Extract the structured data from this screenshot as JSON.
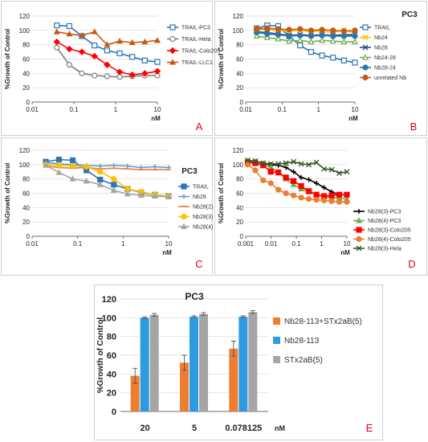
{
  "chart_data": [
    {
      "id": "A",
      "type": "line",
      "letter": "A",
      "title": "",
      "xlabel": "nM",
      "ylabel": "%Growth of Control",
      "xscale": "log",
      "xlim": [
        0.01,
        10
      ],
      "ylim": [
        0,
        120
      ],
      "yticks": [
        0,
        20,
        40,
        60,
        80,
        100,
        120
      ],
      "xticks": [
        0.01,
        0.1,
        1,
        10
      ],
      "xtick_labels": [
        "0.01",
        "0.1",
        "1",
        "10"
      ],
      "legend_position": "right",
      "series": [
        {
          "name": "TRAIL-PC3",
          "color": "#2e75b6",
          "marker": "square-open",
          "x": [
            0.039,
            0.078,
            0.156,
            0.3125,
            0.625,
            1.25,
            2.5,
            5,
            10
          ],
          "y": [
            107,
            106,
            92,
            79,
            72,
            68,
            63,
            58,
            56
          ]
        },
        {
          "name": "TRAIL-Hela",
          "color": "#7f7f7f",
          "marker": "circle-open",
          "x": [
            0.039,
            0.078,
            0.156,
            0.3125,
            0.625,
            1.25,
            2.5,
            5,
            10
          ],
          "y": [
            76,
            52,
            40,
            37,
            36,
            35,
            36,
            37,
            37
          ]
        },
        {
          "name": "TRAIL-Colo205",
          "color": "#ff0000",
          "marker": "diamond",
          "x": [
            0.039,
            0.078,
            0.156,
            0.3125,
            0.625,
            1.25,
            2.5,
            5,
            10
          ],
          "y": [
            84,
            74,
            70,
            64,
            52,
            42,
            38,
            40,
            43
          ]
        },
        {
          "name": "TRAIL-LLC1",
          "color": "#c55a11",
          "marker": "triangle",
          "x": [
            0.039,
            0.078,
            0.156,
            0.3125,
            0.625,
            1.25,
            2.5,
            5,
            10
          ],
          "y": [
            98,
            95,
            93,
            98,
            80,
            85,
            83,
            84,
            86
          ]
        }
      ]
    },
    {
      "id": "B",
      "type": "line",
      "letter": "B",
      "title": "PC3",
      "xlabel": "nM",
      "ylabel": "%Growth of Control",
      "xscale": "log",
      "xlim": [
        0.01,
        10
      ],
      "ylim": [
        0,
        120
      ],
      "yticks": [
        0,
        20,
        40,
        60,
        80,
        100,
        120
      ],
      "xticks": [
        0.01,
        0.1,
        1,
        10
      ],
      "xtick_labels": [
        "0.01",
        "0.1",
        "1",
        "10"
      ],
      "legend_position": "right",
      "series": [
        {
          "name": "TRAIL",
          "color": "#2e75b6",
          "marker": "square-open",
          "x": [
            0.02,
            0.039,
            0.078,
            0.156,
            0.3125,
            0.625,
            1.25,
            2.5,
            5,
            10
          ],
          "y": [
            103,
            107,
            106,
            92,
            79,
            70,
            65,
            62,
            58,
            55
          ]
        },
        {
          "name": "Nb24",
          "color": "#ffc000",
          "marker": "x",
          "x": [
            0.02,
            0.039,
            0.078,
            0.156,
            0.3125,
            0.625,
            1.25,
            2.5,
            5,
            10
          ],
          "y": [
            102,
            101,
            100,
            99,
            100,
            98,
            99,
            97,
            101,
            96
          ]
        },
        {
          "name": "Nb28",
          "color": "#1f4e79",
          "marker": "x",
          "x": [
            0.02,
            0.039,
            0.078,
            0.156,
            0.3125,
            0.625,
            1.25,
            2.5,
            5,
            10
          ],
          "y": [
            98,
            97,
            95,
            93,
            94,
            93,
            94,
            93,
            94,
            94
          ]
        },
        {
          "name": "Nb24-28",
          "color": "#70ad47",
          "marker": "triangle-open",
          "x": [
            0.02,
            0.039,
            0.078,
            0.156,
            0.3125,
            0.625,
            1.25,
            2.5,
            5,
            10
          ],
          "y": [
            92,
            90,
            88,
            85,
            86,
            84,
            86,
            85,
            84,
            84
          ]
        },
        {
          "name": "Nb28-24",
          "color": "#2e75b6",
          "marker": "circle",
          "x": [
            0.02,
            0.039,
            0.078,
            0.156,
            0.3125,
            0.625,
            1.25,
            2.5,
            5,
            10
          ],
          "y": [
            97,
            95,
            94,
            92,
            93,
            92,
            93,
            92,
            92,
            92
          ]
        },
        {
          "name": "unrelated Nb",
          "color": "#c55a11",
          "marker": "circle",
          "x": [
            0.02,
            0.039,
            0.078,
            0.156,
            0.3125,
            0.625,
            1.25,
            2.5,
            5,
            10
          ],
          "y": [
            102,
            103,
            102,
            101,
            102,
            100,
            101,
            100,
            99,
            100
          ]
        }
      ]
    },
    {
      "id": "C",
      "type": "line",
      "letter": "C",
      "title": "PC3",
      "xlabel": "nM",
      "ylabel": "%Growth of Control",
      "xscale": "log",
      "xlim": [
        0.01,
        10
      ],
      "ylim": [
        0,
        120
      ],
      "yticks": [
        0,
        20,
        40,
        60,
        80,
        100,
        120
      ],
      "xticks": [
        0.01,
        0.1,
        1,
        10
      ],
      "xtick_labels": [
        "0.01",
        "0.1",
        "1",
        "10"
      ],
      "legend_position": "right",
      "series": [
        {
          "name": "TRAIL",
          "color": "#2e75b6",
          "marker": "square",
          "x": [
            0.02,
            0.039,
            0.078,
            0.156,
            0.3125,
            0.625,
            1.25,
            2.5,
            5,
            10
          ],
          "y": [
            104,
            107,
            106,
            92,
            79,
            72,
            66,
            61,
            58,
            56
          ]
        },
        {
          "name": "Nb28",
          "color": "#5b9bd5",
          "marker": "plus",
          "x": [
            0.02,
            0.039,
            0.078,
            0.156,
            0.3125,
            0.625,
            1.25,
            2.5,
            5,
            10
          ],
          "y": [
            103,
            101,
            100,
            99,
            98,
            99,
            98,
            96,
            97,
            96
          ]
        },
        {
          "name": "Nb28(2)",
          "color": "#ed7d31",
          "marker": "dash",
          "x": [
            0.02,
            0.039,
            0.078,
            0.156,
            0.3125,
            0.625,
            1.25,
            2.5,
            5,
            10
          ],
          "y": [
            98,
            96,
            95,
            96,
            94,
            95,
            94,
            93,
            93,
            93
          ]
        },
        {
          "name": "Nb28(3)",
          "color": "#ffc000",
          "marker": "circle",
          "x": [
            0.02,
            0.039,
            0.078,
            0.156,
            0.3125,
            0.625,
            1.25,
            2.5,
            5,
            10
          ],
          "y": [
            100,
            99,
            98,
            97,
            90,
            80,
            66,
            62,
            58,
            56
          ]
        },
        {
          "name": "Nb28(4)",
          "color": "#a5a5a5",
          "marker": "triangle",
          "x": [
            0.02,
            0.039,
            0.078,
            0.156,
            0.3125,
            0.625,
            1.25,
            2.5,
            5,
            10
          ],
          "y": [
            99,
            89,
            80,
            77,
            72,
            64,
            59,
            57,
            56,
            55
          ]
        }
      ]
    },
    {
      "id": "D",
      "type": "line",
      "letter": "D",
      "title": "",
      "xlabel": "nM",
      "ylabel": "%Growth of Control",
      "xscale": "log",
      "xlim": [
        0.001,
        10
      ],
      "ylim": [
        0,
        120
      ],
      "yticks": [
        0,
        20,
        40,
        60,
        80,
        100,
        120
      ],
      "xticks": [
        0.001,
        0.01,
        0.1,
        1,
        10
      ],
      "xtick_labels": [
        "0.001",
        "0.01",
        "0.1",
        "1",
        "10"
      ],
      "legend_position": "right",
      "series": [
        {
          "name": "Nb28(3)-PC3",
          "color": "#000000",
          "marker": "plus",
          "x": [
            0.0012,
            0.0024,
            0.0049,
            0.0098,
            0.0195,
            0.039,
            0.078,
            0.156,
            0.3125,
            0.625,
            1.25,
            2.5,
            5,
            10
          ],
          "y": [
            104,
            103,
            102,
            100,
            99,
            96,
            90,
            82,
            79,
            74,
            68,
            62,
            58,
            58
          ]
        },
        {
          "name": "Nb28(4)-PC3",
          "color": "#70ad47",
          "marker": "triangle",
          "x": [
            0.0012,
            0.0024,
            0.0049,
            0.0098,
            0.0195,
            0.039,
            0.078,
            0.156,
            0.3125,
            0.625,
            1.25,
            2.5,
            5,
            10
          ],
          "y": [
            105,
            104,
            101,
            96,
            90,
            80,
            72,
            66,
            62,
            58,
            55,
            54,
            53,
            52
          ]
        },
        {
          "name": "Nb28(3)-Colo205",
          "color": "#ff0000",
          "marker": "square",
          "x": [
            0.0012,
            0.0024,
            0.0049,
            0.0098,
            0.0195,
            0.039,
            0.078,
            0.156,
            0.3125,
            0.625,
            1.25,
            2.5,
            5,
            10
          ],
          "y": [
            103,
            102,
            99,
            90,
            89,
            82,
            77,
            70,
            63,
            58,
            56,
            57,
            58,
            58
          ]
        },
        {
          "name": "Nb28(4)-Colo205",
          "color": "#ed7d31",
          "marker": "circle",
          "x": [
            0.0012,
            0.0024,
            0.0049,
            0.0098,
            0.0195,
            0.039,
            0.078,
            0.156,
            0.3125,
            0.625,
            1.25,
            2.5,
            5,
            10
          ],
          "y": [
            100,
            92,
            78,
            74,
            65,
            60,
            57,
            54,
            52,
            51,
            50,
            49,
            48,
            48
          ]
        },
        {
          "name": "Nb28(3)-Hela",
          "color": "#375623",
          "marker": "x",
          "x": [
            0.0012,
            0.0024,
            0.0049,
            0.0098,
            0.0195,
            0.039,
            0.078,
            0.156,
            0.3125,
            0.625,
            1.25,
            2.5,
            5,
            10
          ],
          "y": [
            106,
            105,
            102,
            101,
            101,
            102,
            104,
            101,
            100,
            103,
            94,
            93,
            88,
            90
          ]
        }
      ]
    },
    {
      "id": "E",
      "type": "bar",
      "letter": "E",
      "title": "PC3",
      "xlabel": "nM",
      "ylabel": "%Growth of Control",
      "ylim": [
        0,
        120
      ],
      "yticks": [
        0,
        20,
        40,
        60,
        80,
        100,
        120
      ],
      "categories": [
        "20",
        "5",
        "0.078125"
      ],
      "legend_position": "right",
      "series": [
        {
          "name": "Nb28-113+STx2aB(5)",
          "color": "#ed7d31",
          "values": [
            38,
            52,
            67
          ],
          "errors": [
            8,
            8,
            8
          ]
        },
        {
          "name": "Nb28-113",
          "color": "#2e9be0",
          "values": [
            100,
            101,
            101
          ],
          "errors": [
            1,
            1,
            1
          ]
        },
        {
          "name": "STx2aB(5)",
          "color": "#a5a5a5",
          "values": [
            103,
            104,
            106
          ],
          "errors": [
            1.5,
            1.5,
            1.5
          ]
        }
      ]
    }
  ]
}
